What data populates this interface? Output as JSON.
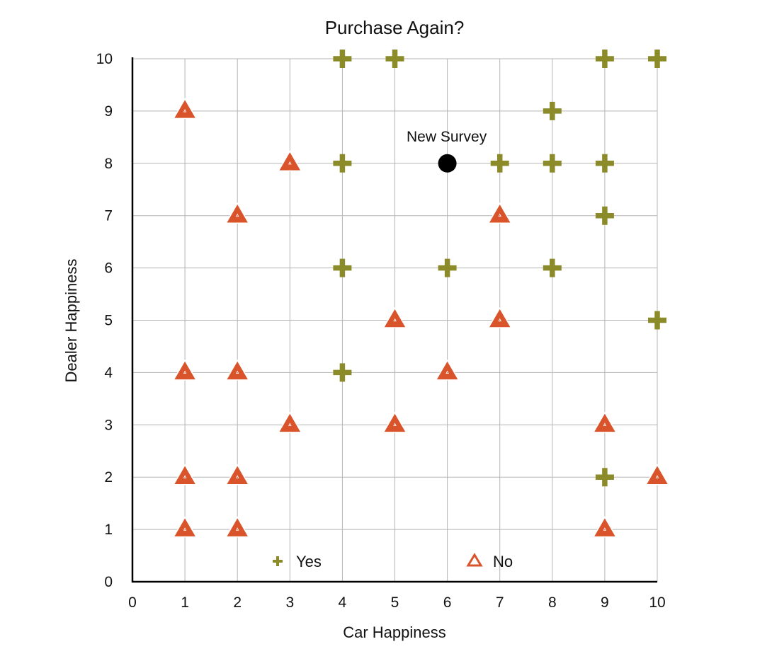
{
  "chart_data": {
    "type": "scatter",
    "title": "Purchase Again?",
    "xlabel": "Car Happiness",
    "ylabel": "Dealer Happiness",
    "xlim": [
      0,
      10
    ],
    "ylim": [
      0,
      10
    ],
    "xticks": [
      0,
      1,
      2,
      3,
      4,
      5,
      6,
      7,
      8,
      9,
      10
    ],
    "yticks": [
      0,
      1,
      2,
      3,
      4,
      5,
      6,
      7,
      8,
      9,
      10
    ],
    "grid": true,
    "legend_position": "bottom-inside",
    "series": [
      {
        "name": "Yes",
        "marker": "plus",
        "color": "#8b8b2a",
        "points": [
          [
            4,
            10
          ],
          [
            5,
            10
          ],
          [
            9,
            10
          ],
          [
            10,
            10
          ],
          [
            8,
            9
          ],
          [
            4,
            8
          ],
          [
            7,
            8
          ],
          [
            8,
            8
          ],
          [
            9,
            8
          ],
          [
            9,
            7
          ],
          [
            4,
            6
          ],
          [
            6,
            6
          ],
          [
            8,
            6
          ],
          [
            10,
            5
          ],
          [
            4,
            4
          ],
          [
            9,
            2
          ]
        ]
      },
      {
        "name": "No",
        "marker": "triangle",
        "color": "#d9542a",
        "points": [
          [
            1,
            9
          ],
          [
            3,
            8
          ],
          [
            2,
            7
          ],
          [
            7,
            7
          ],
          [
            5,
            5
          ],
          [
            7,
            5
          ],
          [
            1,
            4
          ],
          [
            2,
            4
          ],
          [
            6,
            4
          ],
          [
            3,
            3
          ],
          [
            5,
            3
          ],
          [
            9,
            3
          ],
          [
            1,
            2
          ],
          [
            2,
            2
          ],
          [
            10,
            2
          ],
          [
            1,
            1
          ],
          [
            2,
            1
          ],
          [
            9,
            1
          ]
        ]
      }
    ],
    "annotations": [
      {
        "label": "New Survey",
        "point": [
          6,
          8
        ],
        "color": "#000000"
      }
    ]
  }
}
